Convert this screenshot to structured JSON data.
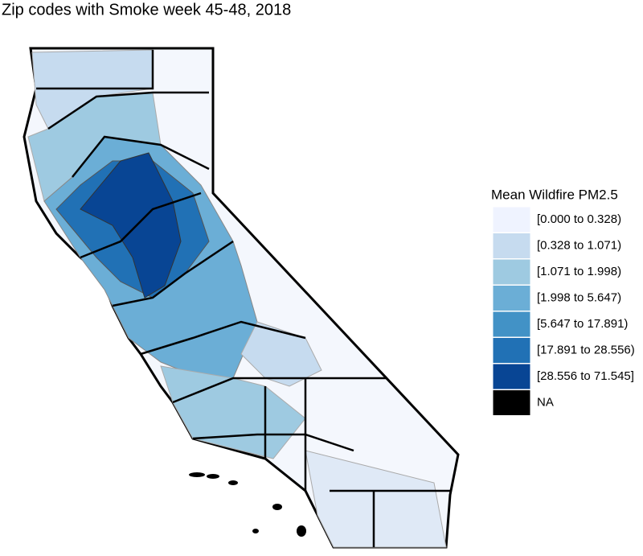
{
  "title": "Zip codes with Smoke week 45-48, 2018",
  "legend": {
    "title": "Mean Wildfire PM2.5",
    "items": [
      {
        "label": "[0.000 to 0.328)",
        "color": "#eff3ff"
      },
      {
        "label": "[0.328 to 1.071)",
        "color": "#c6dbef"
      },
      {
        "label": "[1.071 to 1.998)",
        "color": "#9ecae1"
      },
      {
        "label": "[1.998 to 5.647)",
        "color": "#6baed6"
      },
      {
        "label": "[5.647 to 17.891)",
        "color": "#4292c6"
      },
      {
        "label": "[17.891 to 28.556)",
        "color": "#2171b5"
      },
      {
        "label": "[28.556 to 71.545]",
        "color": "#084594"
      },
      {
        "label": "NA",
        "color": "#000000"
      }
    ]
  }
}
